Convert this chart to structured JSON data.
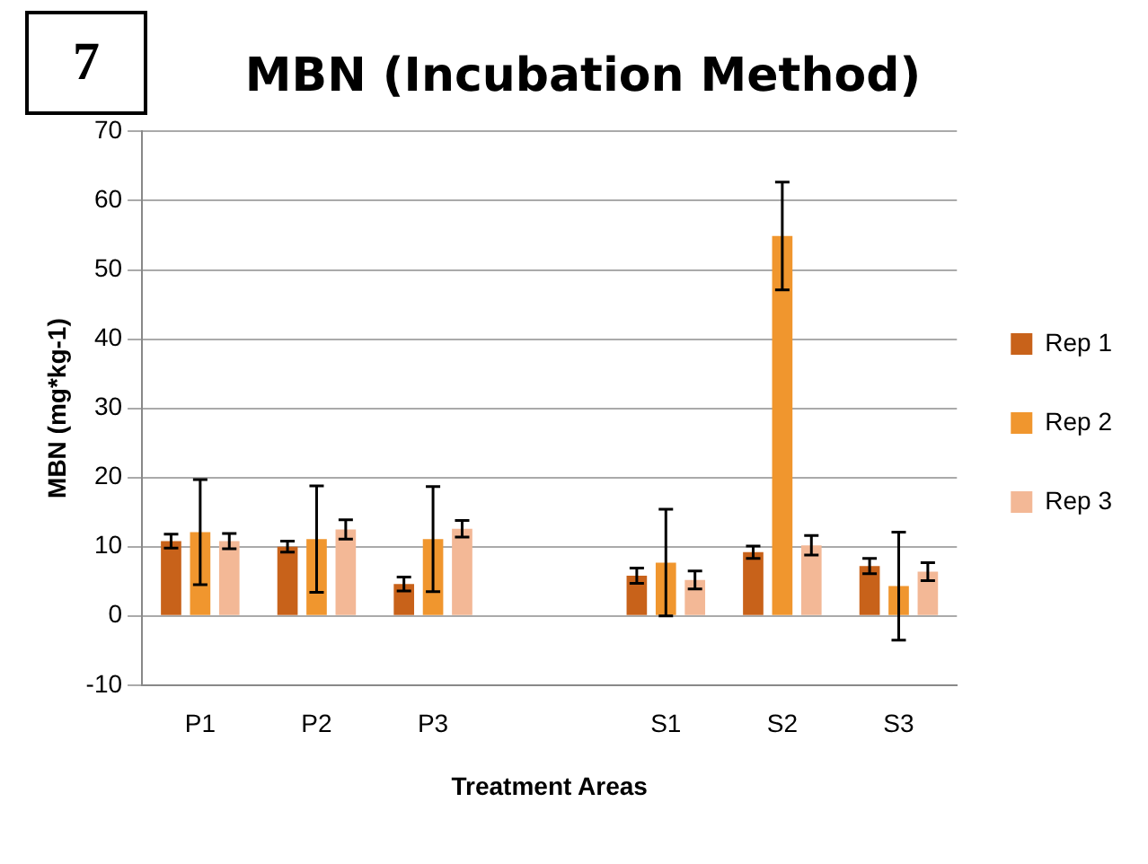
{
  "chart_data": {
    "type": "bar",
    "title": "MBN (Incubation Method)",
    "xlabel": "Treatment Areas",
    "ylabel": "MBN (mg*kg-1)",
    "annotations": [
      "7"
    ],
    "categories": [
      "P1",
      "P2",
      "P3",
      null,
      "S1",
      "S2",
      "S3"
    ],
    "series": [
      {
        "name": "Rep 1",
        "color": "#c8621a",
        "values": [
          10.8,
          10.0,
          4.6,
          null,
          5.8,
          9.2,
          7.2
        ],
        "errors": [
          1.0,
          0.8,
          1.0,
          null,
          1.1,
          0.9,
          1.1
        ]
      },
      {
        "name": "Rep 2",
        "color": "#f0962e",
        "values": [
          12.1,
          11.1,
          11.1,
          null,
          7.7,
          54.9,
          4.3
        ],
        "errors": [
          7.6,
          7.7,
          7.6,
          null,
          7.7,
          7.8,
          7.8
        ]
      },
      {
        "name": "Rep 3",
        "color": "#f3b896",
        "values": [
          10.8,
          12.5,
          12.6,
          null,
          5.2,
          10.2,
          6.4
        ],
        "errors": [
          1.1,
          1.4,
          1.2,
          null,
          1.3,
          1.4,
          1.3
        ]
      }
    ],
    "ylim": [
      -10,
      70
    ],
    "yticks": [
      -10,
      0,
      10,
      20,
      30,
      40,
      50,
      60,
      70
    ],
    "grid": "y",
    "legend": "right"
  }
}
